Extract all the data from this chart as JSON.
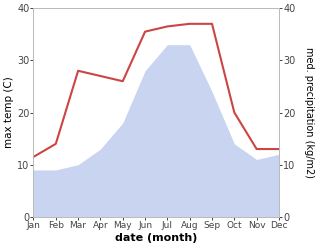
{
  "months": [
    "Jan",
    "Feb",
    "Mar",
    "Apr",
    "May",
    "Jun",
    "Jul",
    "Aug",
    "Sep",
    "Oct",
    "Nov",
    "Dec"
  ],
  "temperature": [
    11.5,
    14,
    28,
    27,
    26,
    35.5,
    36.5,
    37,
    37,
    20,
    13,
    13
  ],
  "precipitation": [
    9,
    9,
    10,
    13,
    18,
    28,
    33,
    33,
    24,
    14,
    11,
    12
  ],
  "temp_color": "#cc4444",
  "precip_fill_color": "#c8d4f0",
  "ylim": [
    0,
    40
  ],
  "ylabel_left": "max temp (C)",
  "ylabel_right": "med. precipitation (kg/m2)",
  "xlabel": "date (month)",
  "bg_color": "#ffffff"
}
